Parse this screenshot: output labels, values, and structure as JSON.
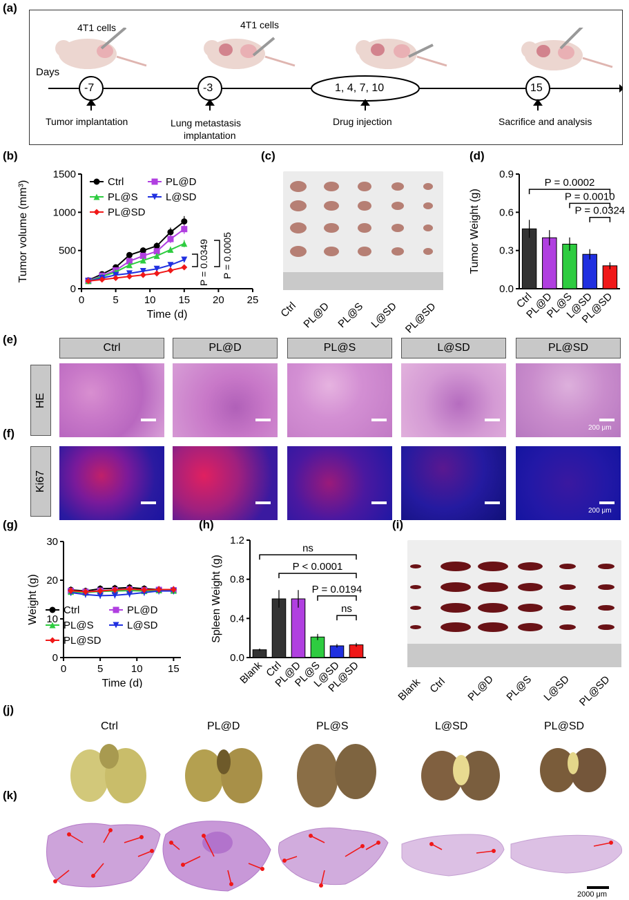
{
  "panel_labels": {
    "a": "(a)",
    "b": "(b)",
    "c": "(c)",
    "d": "(d)",
    "e": "(e)",
    "f": "(f)",
    "g": "(g)",
    "h": "(h)",
    "i": "(i)",
    "j": "(j)",
    "k": "(k)"
  },
  "timeline": {
    "days_label": "Days",
    "cells_label_1": "4T1 cells",
    "cells_label_2": "4T1 cells",
    "points": [
      "-7",
      "-3",
      "1, 4, 7, 10",
      "15"
    ],
    "captions": [
      "Tumor implantation",
      "Lung metastasis",
      "implantation",
      "Drug injection",
      "Sacrifice and analysis"
    ]
  },
  "groups": [
    "Ctrl",
    "PL@D",
    "PL@S",
    "L@SD",
    "PL@SD"
  ],
  "row_labels": {
    "he": "HE",
    "ki67": "Ki67"
  },
  "scale_bars": {
    "micro": "200 μm",
    "lung": "2000 μm"
  },
  "photo_c_labels": [
    "Ctrl",
    "PL@D",
    "PL@S",
    "L@SD",
    "PL@SD"
  ],
  "photo_i_labels": [
    "Blank",
    "Ctrl",
    "PL@D",
    "PL@S",
    "L@SD",
    "PL@SD"
  ],
  "chart_data": [
    {
      "id": "b",
      "type": "line",
      "xlabel": "Time (d)",
      "ylabel": "Tumor volume (mm³)",
      "xlim": [
        0,
        25
      ],
      "ylim": [
        0,
        1500
      ],
      "xticks": [
        0,
        5,
        10,
        15,
        20,
        25
      ],
      "yticks": [
        0,
        500,
        1000,
        1500
      ],
      "x": [
        1,
        3,
        5,
        7,
        9,
        11,
        13,
        15
      ],
      "series": [
        {
          "name": "Ctrl",
          "color": "#000000",
          "values": [
            110,
            190,
            280,
            440,
            500,
            560,
            740,
            880
          ]
        },
        {
          "name": "PL@D",
          "color": "#b03fe0",
          "values": [
            105,
            170,
            240,
            360,
            430,
            490,
            650,
            780
          ]
        },
        {
          "name": "PL@S",
          "color": "#2ecc40",
          "values": [
            100,
            160,
            220,
            310,
            370,
            430,
            510,
            590
          ]
        },
        {
          "name": "L@SD",
          "color": "#2030e0",
          "values": [
            100,
            140,
            180,
            200,
            230,
            260,
            310,
            380
          ]
        },
        {
          "name": "PL@SD",
          "color": "#f01818",
          "values": [
            100,
            120,
            140,
            160,
            180,
            200,
            240,
            280
          ]
        }
      ],
      "annotations": [
        "P = 0.0349",
        "P = 0.0005"
      ]
    },
    {
      "id": "d",
      "type": "bar",
      "ylabel": "Tumor Weight (g)",
      "ylim": [
        0,
        0.9
      ],
      "yticks": [
        "0.0",
        "0.3",
        "0.6",
        "0.9"
      ],
      "categories": [
        "Ctrl",
        "PL@D",
        "PL@S",
        "L@SD",
        "PL@SD"
      ],
      "values": [
        0.47,
        0.4,
        0.35,
        0.27,
        0.18
      ],
      "colors": [
        "#333333",
        "#b03fe0",
        "#2ecc40",
        "#2030e0",
        "#f01818"
      ],
      "annotations": [
        {
          "text": "P = 0.0002"
        },
        {
          "text": "P = 0.0010"
        },
        {
          "text": "P = 0.0324"
        }
      ]
    },
    {
      "id": "g",
      "type": "line",
      "xlabel": "Time (d)",
      "ylabel": "Weight (g)",
      "xlim": [
        0,
        16
      ],
      "ylim": [
        0,
        30
      ],
      "xticks": [
        0,
        5,
        10,
        15
      ],
      "yticks": [
        0,
        10,
        20,
        30
      ],
      "x": [
        1,
        3,
        5,
        7,
        9,
        11,
        13,
        15
      ],
      "series": [
        {
          "name": "Ctrl",
          "color": "#000000",
          "values": [
            17.5,
            17.2,
            17.8,
            17.9,
            18.1,
            17.8,
            17.6,
            17.5
          ]
        },
        {
          "name": "PL@D",
          "color": "#b03fe0",
          "values": [
            17.2,
            17.0,
            17.3,
            17.4,
            17.6,
            17.4,
            17.5,
            17.4
          ]
        },
        {
          "name": "PL@S",
          "color": "#2ecc40",
          "values": [
            17.0,
            16.8,
            17.1,
            17.2,
            17.3,
            17.2,
            17.4,
            17.3
          ]
        },
        {
          "name": "L@SD",
          "color": "#2030e0",
          "values": [
            16.8,
            16.3,
            16.0,
            16.1,
            16.4,
            16.8,
            17.2,
            17.2
          ]
        },
        {
          "name": "PL@SD",
          "color": "#f01818",
          "values": [
            17.3,
            17.0,
            17.2,
            17.5,
            17.7,
            17.5,
            17.6,
            17.6
          ]
        }
      ]
    },
    {
      "id": "h",
      "type": "bar",
      "ylabel": "Spleen Weight (g)",
      "ylim": [
        0,
        1.2
      ],
      "yticks": [
        "0.0",
        "0.4",
        "0.8",
        "1.2"
      ],
      "categories": [
        "Blank",
        "Ctrl",
        "PL@D",
        "PL@S",
        "L@SD",
        "PL@SD"
      ],
      "values": [
        0.08,
        0.6,
        0.6,
        0.21,
        0.12,
        0.13
      ],
      "colors": [
        "#333333",
        "#333333",
        "#b03fe0",
        "#2ecc40",
        "#2030e0",
        "#f01818"
      ],
      "annotations": [
        {
          "text": "ns"
        },
        {
          "text": "P < 0.0001"
        },
        {
          "text": "P = 0.0194"
        },
        {
          "text": "ns"
        }
      ]
    }
  ]
}
